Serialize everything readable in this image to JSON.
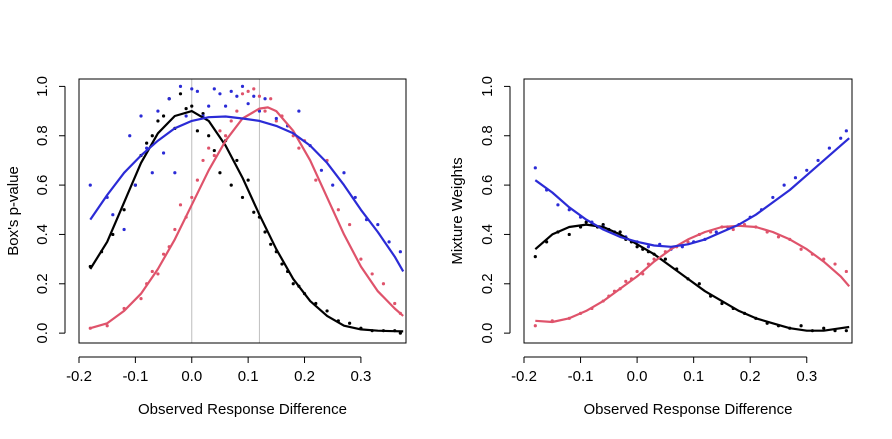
{
  "chart_data": [
    {
      "type": "scatter",
      "xlabel": "Observed Response Difference",
      "ylabel": "Box's p-value",
      "xlim": [
        -0.2,
        0.38
      ],
      "ylim": [
        -0.04,
        1.03
      ],
      "xticks": [
        -0.2,
        -0.1,
        0.0,
        0.1,
        0.2,
        0.3
      ],
      "xtick_labels": [
        "-0.2",
        "-0.1",
        "0.0",
        "0.1",
        "0.2",
        "0.3"
      ],
      "yticks": [
        0.0,
        0.2,
        0.4,
        0.6,
        0.8,
        1.0
      ],
      "ytick_labels": [
        "0.0",
        "0.2",
        "0.4",
        "0.6",
        "0.8",
        "1.0"
      ],
      "vlines": [
        0.0,
        0.12
      ],
      "vline_color": "#bebebe",
      "grid": false,
      "series": [
        {
          "color": "#000000",
          "curve_x": [
            -0.18,
            -0.15,
            -0.12,
            -0.09,
            -0.06,
            -0.03,
            0.0,
            0.03,
            0.06,
            0.09,
            0.12,
            0.15,
            0.18,
            0.21,
            0.24,
            0.27,
            0.3,
            0.33,
            0.36,
            0.375
          ],
          "curve_y": [
            0.26,
            0.37,
            0.53,
            0.69,
            0.81,
            0.88,
            0.9,
            0.86,
            0.76,
            0.63,
            0.48,
            0.34,
            0.22,
            0.13,
            0.07,
            0.03,
            0.015,
            0.01,
            0.008,
            0.007
          ],
          "points_x": [
            -0.18,
            -0.16,
            -0.14,
            -0.12,
            -0.1,
            -0.09,
            -0.08,
            -0.07,
            -0.06,
            -0.05,
            -0.04,
            -0.03,
            -0.02,
            -0.01,
            0.0,
            0.01,
            0.02,
            0.03,
            0.04,
            0.05,
            0.06,
            0.07,
            0.08,
            0.09,
            0.1,
            0.11,
            0.12,
            0.13,
            0.14,
            0.15,
            0.16,
            0.17,
            0.18,
            0.19,
            0.2,
            0.22,
            0.24,
            0.26,
            0.28,
            0.3,
            0.32,
            0.34,
            0.36,
            0.37
          ],
          "points_y": [
            0.27,
            0.33,
            0.4,
            0.5,
            0.6,
            0.72,
            0.77,
            0.8,
            0.86,
            0.88,
            0.95,
            0.83,
            0.97,
            0.91,
            0.92,
            0.82,
            0.89,
            0.8,
            0.74,
            0.65,
            0.78,
            0.6,
            0.7,
            0.55,
            0.62,
            0.49,
            0.47,
            0.41,
            0.36,
            0.33,
            0.28,
            0.25,
            0.2,
            0.19,
            0.16,
            0.12,
            0.09,
            0.05,
            0.04,
            0.02,
            0.01,
            0.01,
            0.01,
            0.0
          ]
        },
        {
          "color": "#df536b",
          "curve_x": [
            -0.18,
            -0.15,
            -0.12,
            -0.09,
            -0.06,
            -0.03,
            0.0,
            0.03,
            0.06,
            0.09,
            0.12,
            0.135,
            0.15,
            0.18,
            0.21,
            0.24,
            0.27,
            0.3,
            0.33,
            0.36,
            0.375
          ],
          "curve_y": [
            0.02,
            0.04,
            0.09,
            0.16,
            0.26,
            0.38,
            0.52,
            0.66,
            0.78,
            0.87,
            0.91,
            0.915,
            0.9,
            0.82,
            0.7,
            0.55,
            0.4,
            0.27,
            0.17,
            0.1,
            0.07
          ],
          "points_x": [
            -0.18,
            -0.15,
            -0.12,
            -0.09,
            -0.08,
            -0.07,
            -0.06,
            -0.05,
            -0.04,
            -0.03,
            -0.02,
            -0.01,
            0.0,
            0.01,
            0.02,
            0.03,
            0.04,
            0.05,
            0.06,
            0.07,
            0.08,
            0.09,
            0.1,
            0.11,
            0.12,
            0.13,
            0.14,
            0.15,
            0.16,
            0.17,
            0.18,
            0.19,
            0.2,
            0.22,
            0.24,
            0.26,
            0.28,
            0.3,
            0.32,
            0.34,
            0.36,
            0.37
          ],
          "points_y": [
            0.02,
            0.03,
            0.1,
            0.14,
            0.2,
            0.25,
            0.24,
            0.32,
            0.35,
            0.42,
            0.52,
            0.47,
            0.55,
            0.62,
            0.7,
            0.75,
            0.72,
            0.82,
            0.8,
            0.86,
            0.9,
            0.97,
            0.98,
            0.99,
            0.96,
            0.9,
            0.95,
            0.86,
            0.88,
            0.84,
            0.8,
            0.75,
            0.78,
            0.62,
            0.7,
            0.5,
            0.44,
            0.3,
            0.24,
            0.2,
            0.12,
            0.08
          ]
        },
        {
          "color": "#2b2bd6",
          "curve_x": [
            -0.18,
            -0.15,
            -0.12,
            -0.09,
            -0.06,
            -0.03,
            0.0,
            0.03,
            0.06,
            0.09,
            0.12,
            0.15,
            0.18,
            0.21,
            0.24,
            0.27,
            0.3,
            0.33,
            0.36,
            0.375
          ],
          "curve_y": [
            0.46,
            0.56,
            0.65,
            0.72,
            0.78,
            0.83,
            0.86,
            0.875,
            0.878,
            0.87,
            0.86,
            0.84,
            0.81,
            0.76,
            0.69,
            0.6,
            0.5,
            0.41,
            0.31,
            0.25
          ],
          "points_x": [
            -0.18,
            -0.15,
            -0.14,
            -0.12,
            -0.11,
            -0.1,
            -0.09,
            -0.08,
            -0.07,
            -0.06,
            -0.05,
            -0.04,
            -0.03,
            -0.02,
            -0.01,
            0.0,
            0.01,
            0.02,
            0.03,
            0.04,
            0.05,
            0.06,
            0.07,
            0.08,
            0.09,
            0.1,
            0.11,
            0.12,
            0.13,
            0.15,
            0.17,
            0.19,
            0.21,
            0.23,
            0.25,
            0.27,
            0.29,
            0.31,
            0.33,
            0.35,
            0.37
          ],
          "points_y": [
            0.6,
            0.55,
            0.48,
            0.42,
            0.8,
            0.6,
            0.88,
            0.75,
            0.65,
            0.9,
            0.73,
            0.95,
            0.65,
            1.0,
            0.88,
            0.99,
            0.98,
            0.88,
            0.92,
            0.99,
            0.97,
            0.92,
            0.98,
            0.96,
            1.0,
            0.93,
            0.96,
            0.9,
            0.95,
            0.87,
            0.84,
            0.9,
            0.76,
            0.66,
            0.6,
            0.65,
            0.55,
            0.46,
            0.44,
            0.37,
            0.33
          ]
        }
      ]
    },
    {
      "type": "scatter",
      "xlabel": "Observed Response Difference",
      "ylabel": "Mixture Weights",
      "xlim": [
        -0.2,
        0.38
      ],
      "ylim": [
        -0.04,
        1.03
      ],
      "xticks": [
        -0.2,
        -0.1,
        0.0,
        0.1,
        0.2,
        0.3
      ],
      "xtick_labels": [
        "-0.2",
        "-0.1",
        "0.0",
        "0.1",
        "0.2",
        "0.3"
      ],
      "yticks": [
        0.0,
        0.2,
        0.4,
        0.6,
        0.8,
        1.0
      ],
      "ytick_labels": [
        "0.0",
        "0.2",
        "0.4",
        "0.6",
        "0.8",
        "1.0"
      ],
      "vlines": [],
      "grid": false,
      "series": [
        {
          "color": "#000000",
          "curve_x": [
            -0.18,
            -0.15,
            -0.12,
            -0.09,
            -0.06,
            -0.03,
            0.0,
            0.03,
            0.06,
            0.09,
            0.12,
            0.15,
            0.18,
            0.21,
            0.24,
            0.27,
            0.3,
            0.33,
            0.36,
            0.375
          ],
          "curve_y": [
            0.34,
            0.4,
            0.43,
            0.44,
            0.43,
            0.4,
            0.36,
            0.32,
            0.27,
            0.22,
            0.17,
            0.13,
            0.09,
            0.06,
            0.04,
            0.02,
            0.01,
            0.01,
            0.02,
            0.025
          ],
          "points_x": [
            -0.18,
            -0.16,
            -0.14,
            -0.12,
            -0.1,
            -0.09,
            -0.08,
            -0.07,
            -0.06,
            -0.05,
            -0.04,
            -0.03,
            -0.02,
            -0.01,
            0.0,
            0.01,
            0.02,
            0.03,
            0.05,
            0.07,
            0.09,
            0.11,
            0.13,
            0.15,
            0.17,
            0.19,
            0.21,
            0.23,
            0.25,
            0.27,
            0.29,
            0.31,
            0.33,
            0.35,
            0.37
          ],
          "points_y": [
            0.31,
            0.37,
            0.41,
            0.4,
            0.43,
            0.45,
            0.44,
            0.43,
            0.44,
            0.42,
            0.41,
            0.41,
            0.38,
            0.37,
            0.35,
            0.34,
            0.33,
            0.32,
            0.3,
            0.26,
            0.22,
            0.2,
            0.15,
            0.12,
            0.1,
            0.08,
            0.06,
            0.04,
            0.03,
            0.02,
            0.03,
            0.01,
            0.02,
            0.01,
            0.01
          ]
        },
        {
          "color": "#df536b",
          "curve_x": [
            -0.18,
            -0.15,
            -0.12,
            -0.09,
            -0.06,
            -0.03,
            0.0,
            0.03,
            0.06,
            0.09,
            0.12,
            0.15,
            0.18,
            0.21,
            0.24,
            0.27,
            0.3,
            0.33,
            0.36,
            0.375
          ],
          "curve_y": [
            0.05,
            0.045,
            0.06,
            0.09,
            0.13,
            0.18,
            0.23,
            0.29,
            0.34,
            0.38,
            0.41,
            0.43,
            0.435,
            0.43,
            0.41,
            0.38,
            0.34,
            0.29,
            0.23,
            0.19
          ],
          "points_x": [
            -0.18,
            -0.15,
            -0.12,
            -0.1,
            -0.08,
            -0.06,
            -0.05,
            -0.04,
            -0.03,
            -0.02,
            -0.01,
            0.0,
            0.01,
            0.02,
            0.03,
            0.05,
            0.07,
            0.09,
            0.11,
            0.13,
            0.15,
            0.17,
            0.19,
            0.21,
            0.23,
            0.25,
            0.27,
            0.29,
            0.31,
            0.33,
            0.35,
            0.37
          ],
          "points_y": [
            0.03,
            0.05,
            0.06,
            0.08,
            0.1,
            0.13,
            0.15,
            0.17,
            0.18,
            0.21,
            0.22,
            0.25,
            0.24,
            0.28,
            0.3,
            0.33,
            0.35,
            0.37,
            0.4,
            0.41,
            0.43,
            0.42,
            0.44,
            0.43,
            0.41,
            0.39,
            0.38,
            0.34,
            0.32,
            0.3,
            0.28,
            0.25
          ]
        },
        {
          "color": "#2b2bd6",
          "curve_x": [
            -0.18,
            -0.15,
            -0.12,
            -0.09,
            -0.06,
            -0.03,
            0.0,
            0.03,
            0.06,
            0.09,
            0.12,
            0.15,
            0.18,
            0.21,
            0.24,
            0.27,
            0.3,
            0.33,
            0.36,
            0.375
          ],
          "curve_y": [
            0.62,
            0.57,
            0.51,
            0.46,
            0.42,
            0.39,
            0.37,
            0.355,
            0.35,
            0.36,
            0.38,
            0.41,
            0.44,
            0.48,
            0.53,
            0.58,
            0.64,
            0.7,
            0.76,
            0.79
          ],
          "points_x": [
            -0.18,
            -0.16,
            -0.14,
            -0.12,
            -0.1,
            -0.08,
            -0.06,
            -0.04,
            -0.02,
            0.0,
            0.02,
            0.04,
            0.06,
            0.08,
            0.1,
            0.12,
            0.14,
            0.16,
            0.18,
            0.2,
            0.22,
            0.24,
            0.26,
            0.28,
            0.3,
            0.32,
            0.34,
            0.36,
            0.37
          ],
          "points_y": [
            0.67,
            0.58,
            0.52,
            0.5,
            0.47,
            0.45,
            0.43,
            0.41,
            0.39,
            0.37,
            0.35,
            0.36,
            0.34,
            0.35,
            0.37,
            0.38,
            0.41,
            0.43,
            0.44,
            0.47,
            0.5,
            0.55,
            0.6,
            0.63,
            0.66,
            0.7,
            0.75,
            0.79,
            0.82
          ]
        }
      ]
    }
  ]
}
